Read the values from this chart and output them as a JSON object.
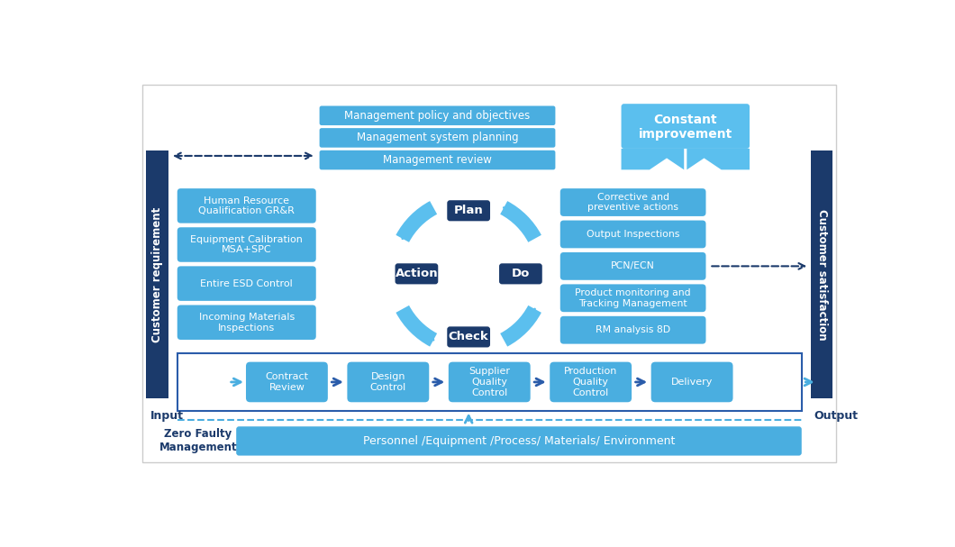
{
  "bg_color": "#ffffff",
  "dark_blue": "#1b3a6b",
  "box_blue": "#4aaee0",
  "box_blue2": "#5bbfee",
  "mid_blue": "#2a5caa",
  "management_boxes": [
    "Management policy and objectives",
    "Management system planning",
    "Management review"
  ],
  "left_boxes": [
    "Human Resource\nQualification GR&R",
    "Equipment Calibration\nMSA+SPC",
    "Entire ESD Control",
    "Incoming Materials\nInspections"
  ],
  "right_boxes": [
    "Corrective and\npreventive actions",
    "Output Inspections",
    "PCN/ECN",
    "Product monitoring and\nTracking Management",
    "RM analysis 8D"
  ],
  "pdca_labels": [
    "Plan",
    "Do",
    "Check",
    "Action"
  ],
  "bottom_flow": [
    "Contract\nReview",
    "Design\nControl",
    "Supplier\nQuality\nControl",
    "Production\nQuality\nControl",
    "Delivery"
  ],
  "bottom_bar_text": "Personnel /Equipment /Process/ Materials/ Environment",
  "zero_faulty_text": "Zero Faulty\nManagement",
  "input_text": "Input",
  "output_text": "Output",
  "customer_req": "Customer requirement",
  "customer_sat": "Customer satisfaction",
  "constant_improvement": "Constant\nimprovement"
}
